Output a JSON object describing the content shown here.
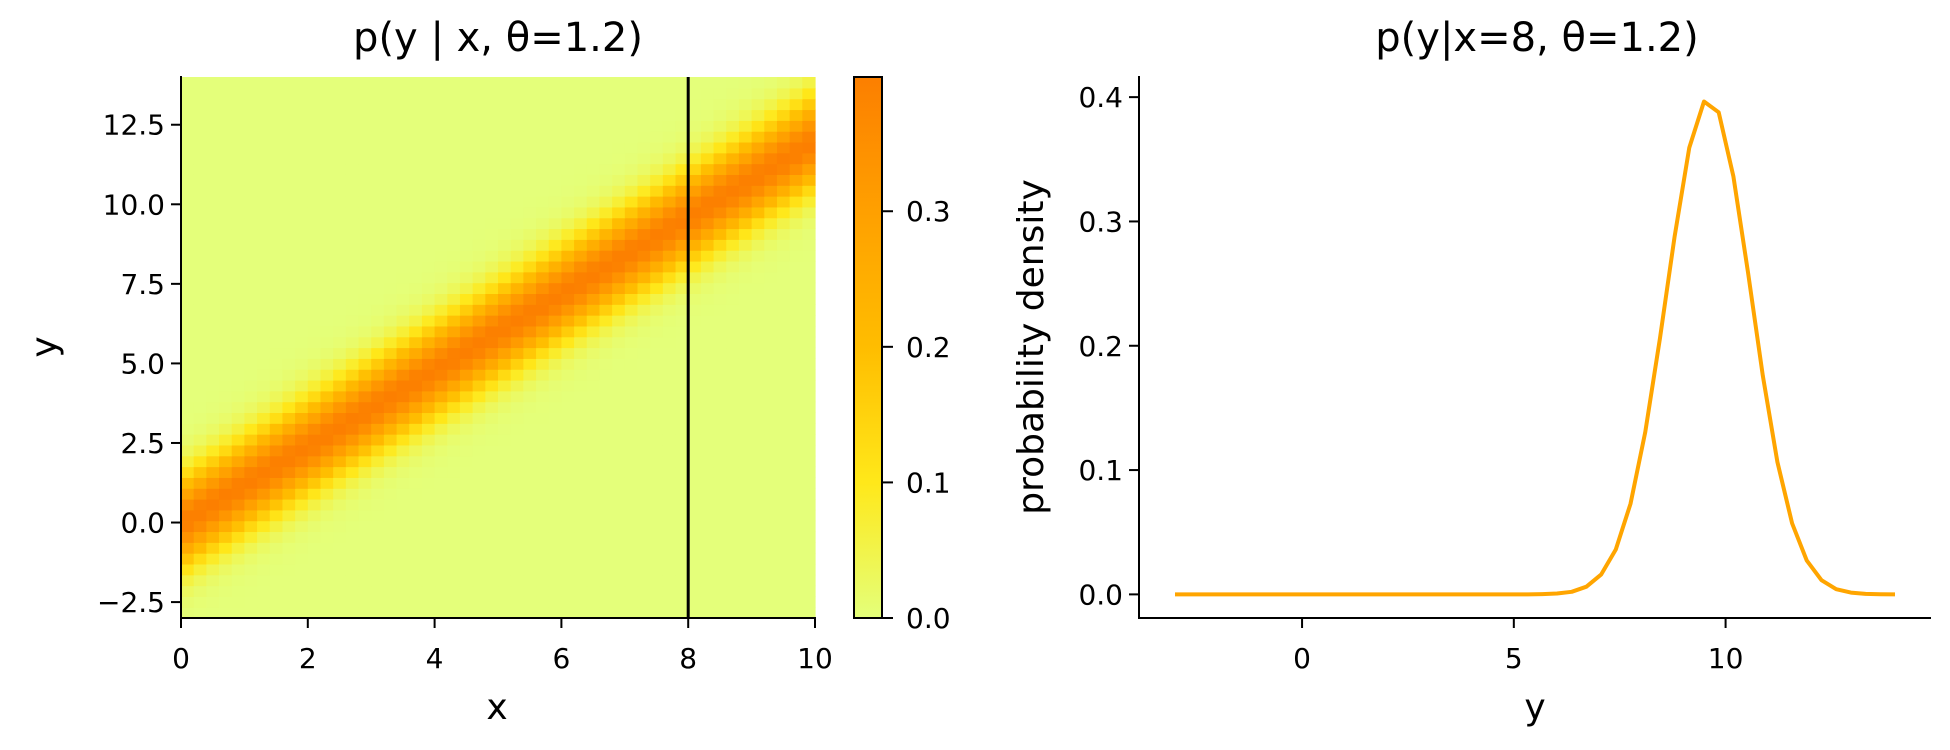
{
  "left_panel": {
    "title": "p(y | x, θ=1.2)",
    "xlabel": "x",
    "ylabel": "y",
    "xticks": [
      "0",
      "2",
      "4",
      "6",
      "8",
      "10"
    ],
    "yticks": [
      "−2.5",
      "0.0",
      "2.5",
      "5.0",
      "7.5",
      "10.0",
      "12.5"
    ],
    "vline_x": 8,
    "vline_color": "#000000"
  },
  "colorbar": {
    "ticks": [
      "0.0",
      "0.1",
      "0.2",
      "0.3"
    ],
    "range": [
      0.0,
      0.399
    ],
    "colormap": "Wistia",
    "colors": [
      "#e4ff7a",
      "#ffe81a",
      "#ffbd00",
      "#ffa000",
      "#fc7f00"
    ]
  },
  "right_panel": {
    "title": "p(y|x=8, θ=1.2)",
    "xlabel": "y",
    "ylabel": "probability density",
    "xticks": [
      "0",
      "5",
      "10"
    ],
    "yticks": [
      "0.0",
      "0.1",
      "0.2",
      "0.3",
      "0.4"
    ],
    "line_color": "#ffa500"
  },
  "chart_data": [
    {
      "type": "heatmap",
      "title": "p(y | x, θ=1.2)",
      "xlabel": "x",
      "ylabel": "y",
      "xlim": [
        0,
        10
      ],
      "ylim": [
        -3,
        14
      ],
      "grid_shape": [
        50,
        50
      ],
      "theta": 1.2,
      "noise_sd": 1.0,
      "description": "Gaussian density N(y; θ·x, 1) evaluated on a 50×50 grid; bright band along y = 1.2x",
      "vline": {
        "x": 8,
        "color": "#000000"
      },
      "colorbar": {
        "ticks": [
          0.0,
          0.1,
          0.2,
          0.3
        ],
        "vmin": 0.0,
        "vmax": 0.399
      },
      "grid": false
    },
    {
      "type": "line",
      "title": "p(y|x=8, θ=1.2)",
      "xlabel": "y",
      "ylabel": "probability density",
      "xlim": [
        -3.85,
        14.85
      ],
      "ylim": [
        -0.019,
        0.417
      ],
      "xticks": [
        0,
        5,
        10
      ],
      "yticks": [
        0.0,
        0.1,
        0.2,
        0.3,
        0.4
      ],
      "grid": false,
      "series": [
        {
          "name": "p(y|x=8, θ=1.2)",
          "color": "#ffa500",
          "x_start": -3,
          "x_end": 14,
          "n_points": 50,
          "values": [
            0,
            0,
            0,
            0,
            0,
            0,
            0,
            0,
            0,
            0,
            0,
            0,
            0,
            0,
            0,
            0,
            0,
            0,
            0,
            0,
            0,
            0,
            0,
            0,
            0.0,
            0.0002,
            0.0007,
            0.0021,
            0.0062,
            0.0159,
            0.0361,
            0.0729,
            0.1303,
            0.2057,
            0.2878,
            0.3594,
            0.3965,
            0.3878,
            0.3362,
            0.2585,
            0.176,
            0.1065,
            0.0572,
            0.0272,
            0.0114,
            0.0042,
            0.0014,
            0.0004,
            0.0001,
            0.0
          ]
        }
      ]
    }
  ]
}
